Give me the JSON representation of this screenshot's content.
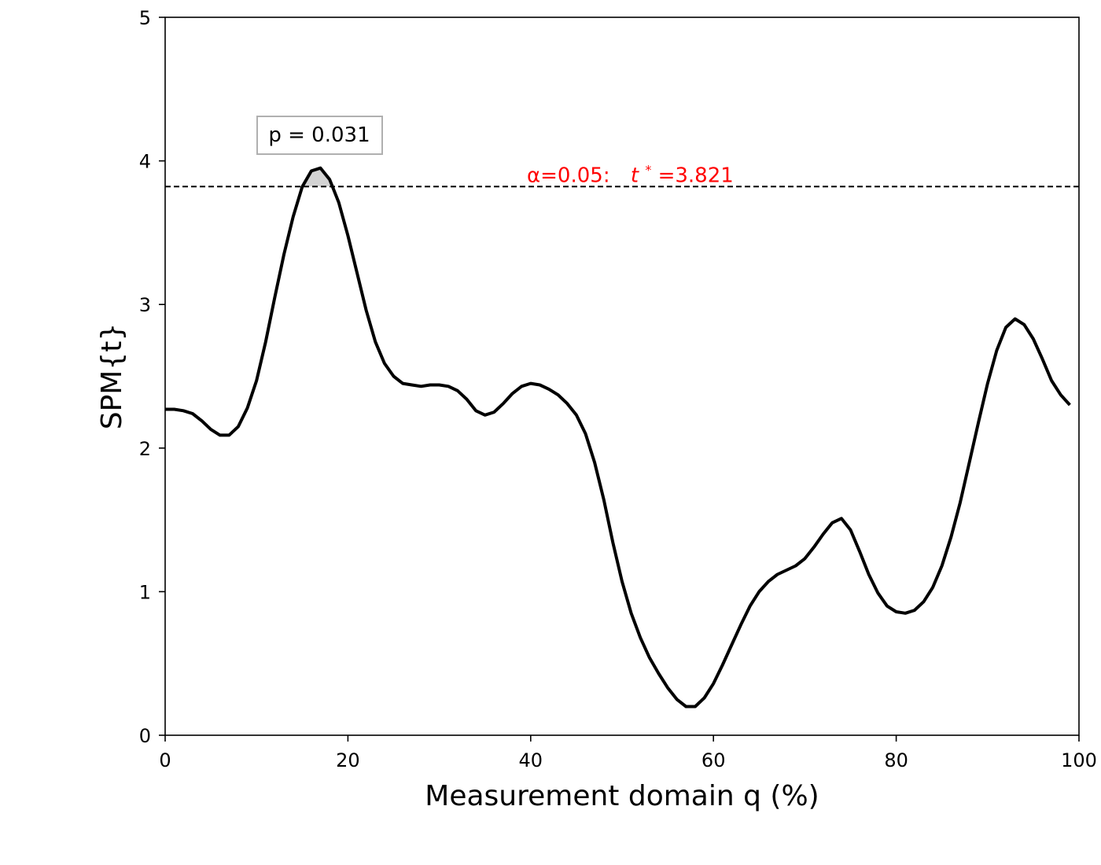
{
  "chart_data": {
    "type": "line",
    "xlabel": "Measurement domain q (%)",
    "ylabel": "SPM{t}",
    "xlim": [
      0,
      100
    ],
    "ylim": [
      0,
      5
    ],
    "xticks": [
      "0",
      "20",
      "40",
      "60",
      "80",
      "100"
    ],
    "yticks": [
      "0",
      "1",
      "2",
      "3",
      "4",
      "5"
    ],
    "grid": false,
    "threshold": {
      "value": 3.821,
      "label_alpha": "α=0.05:",
      "label_t": "t",
      "label_star": "*",
      "label_value": "=3.821",
      "color": "#ff0000",
      "style": "dashed"
    },
    "annotation": {
      "text": "p = 0.031"
    },
    "series": [
      {
        "color": "#000000",
        "x": [
          0,
          1,
          2,
          3,
          4,
          5,
          6,
          7,
          8,
          9,
          10,
          11,
          12,
          13,
          14,
          15,
          16,
          17,
          18,
          19,
          20,
          21,
          22,
          23,
          24,
          25,
          26,
          27,
          28,
          29,
          30,
          31,
          32,
          33,
          34,
          35,
          36,
          37,
          38,
          39,
          40,
          41,
          42,
          43,
          44,
          45,
          46,
          47,
          48,
          49,
          50,
          51,
          52,
          53,
          54,
          55,
          56,
          57,
          58,
          59,
          60,
          61,
          62,
          63,
          64,
          65,
          66,
          67,
          68,
          69,
          70,
          71,
          72,
          73,
          74,
          75,
          76,
          77,
          78,
          79,
          80,
          81,
          82,
          83,
          84,
          85,
          86,
          87,
          88,
          89,
          90,
          91,
          92,
          93,
          94,
          95,
          96,
          97,
          98,
          99
        ],
        "values": [
          2.27,
          2.27,
          2.26,
          2.24,
          2.19,
          2.13,
          2.09,
          2.09,
          2.15,
          2.28,
          2.47,
          2.74,
          3.05,
          3.35,
          3.61,
          3.82,
          3.93,
          3.95,
          3.87,
          3.71,
          3.48,
          3.22,
          2.96,
          2.74,
          2.59,
          2.5,
          2.45,
          2.44,
          2.43,
          2.44,
          2.44,
          2.43,
          2.4,
          2.34,
          2.26,
          2.23,
          2.25,
          2.31,
          2.38,
          2.43,
          2.45,
          2.44,
          2.41,
          2.37,
          2.31,
          2.23,
          2.1,
          1.9,
          1.64,
          1.34,
          1.07,
          0.85,
          0.68,
          0.54,
          0.43,
          0.33,
          0.25,
          0.2,
          0.2,
          0.26,
          0.36,
          0.49,
          0.63,
          0.77,
          0.9,
          1.0,
          1.07,
          1.12,
          1.15,
          1.18,
          1.23,
          1.31,
          1.4,
          1.48,
          1.51,
          1.43,
          1.28,
          1.12,
          0.99,
          0.9,
          0.86,
          0.85,
          0.87,
          0.93,
          1.03,
          1.18,
          1.38,
          1.62,
          1.9,
          2.18,
          2.45,
          2.68,
          2.84,
          2.9,
          2.86,
          2.76,
          2.62,
          2.47,
          2.37,
          2.3
        ]
      }
    ]
  }
}
